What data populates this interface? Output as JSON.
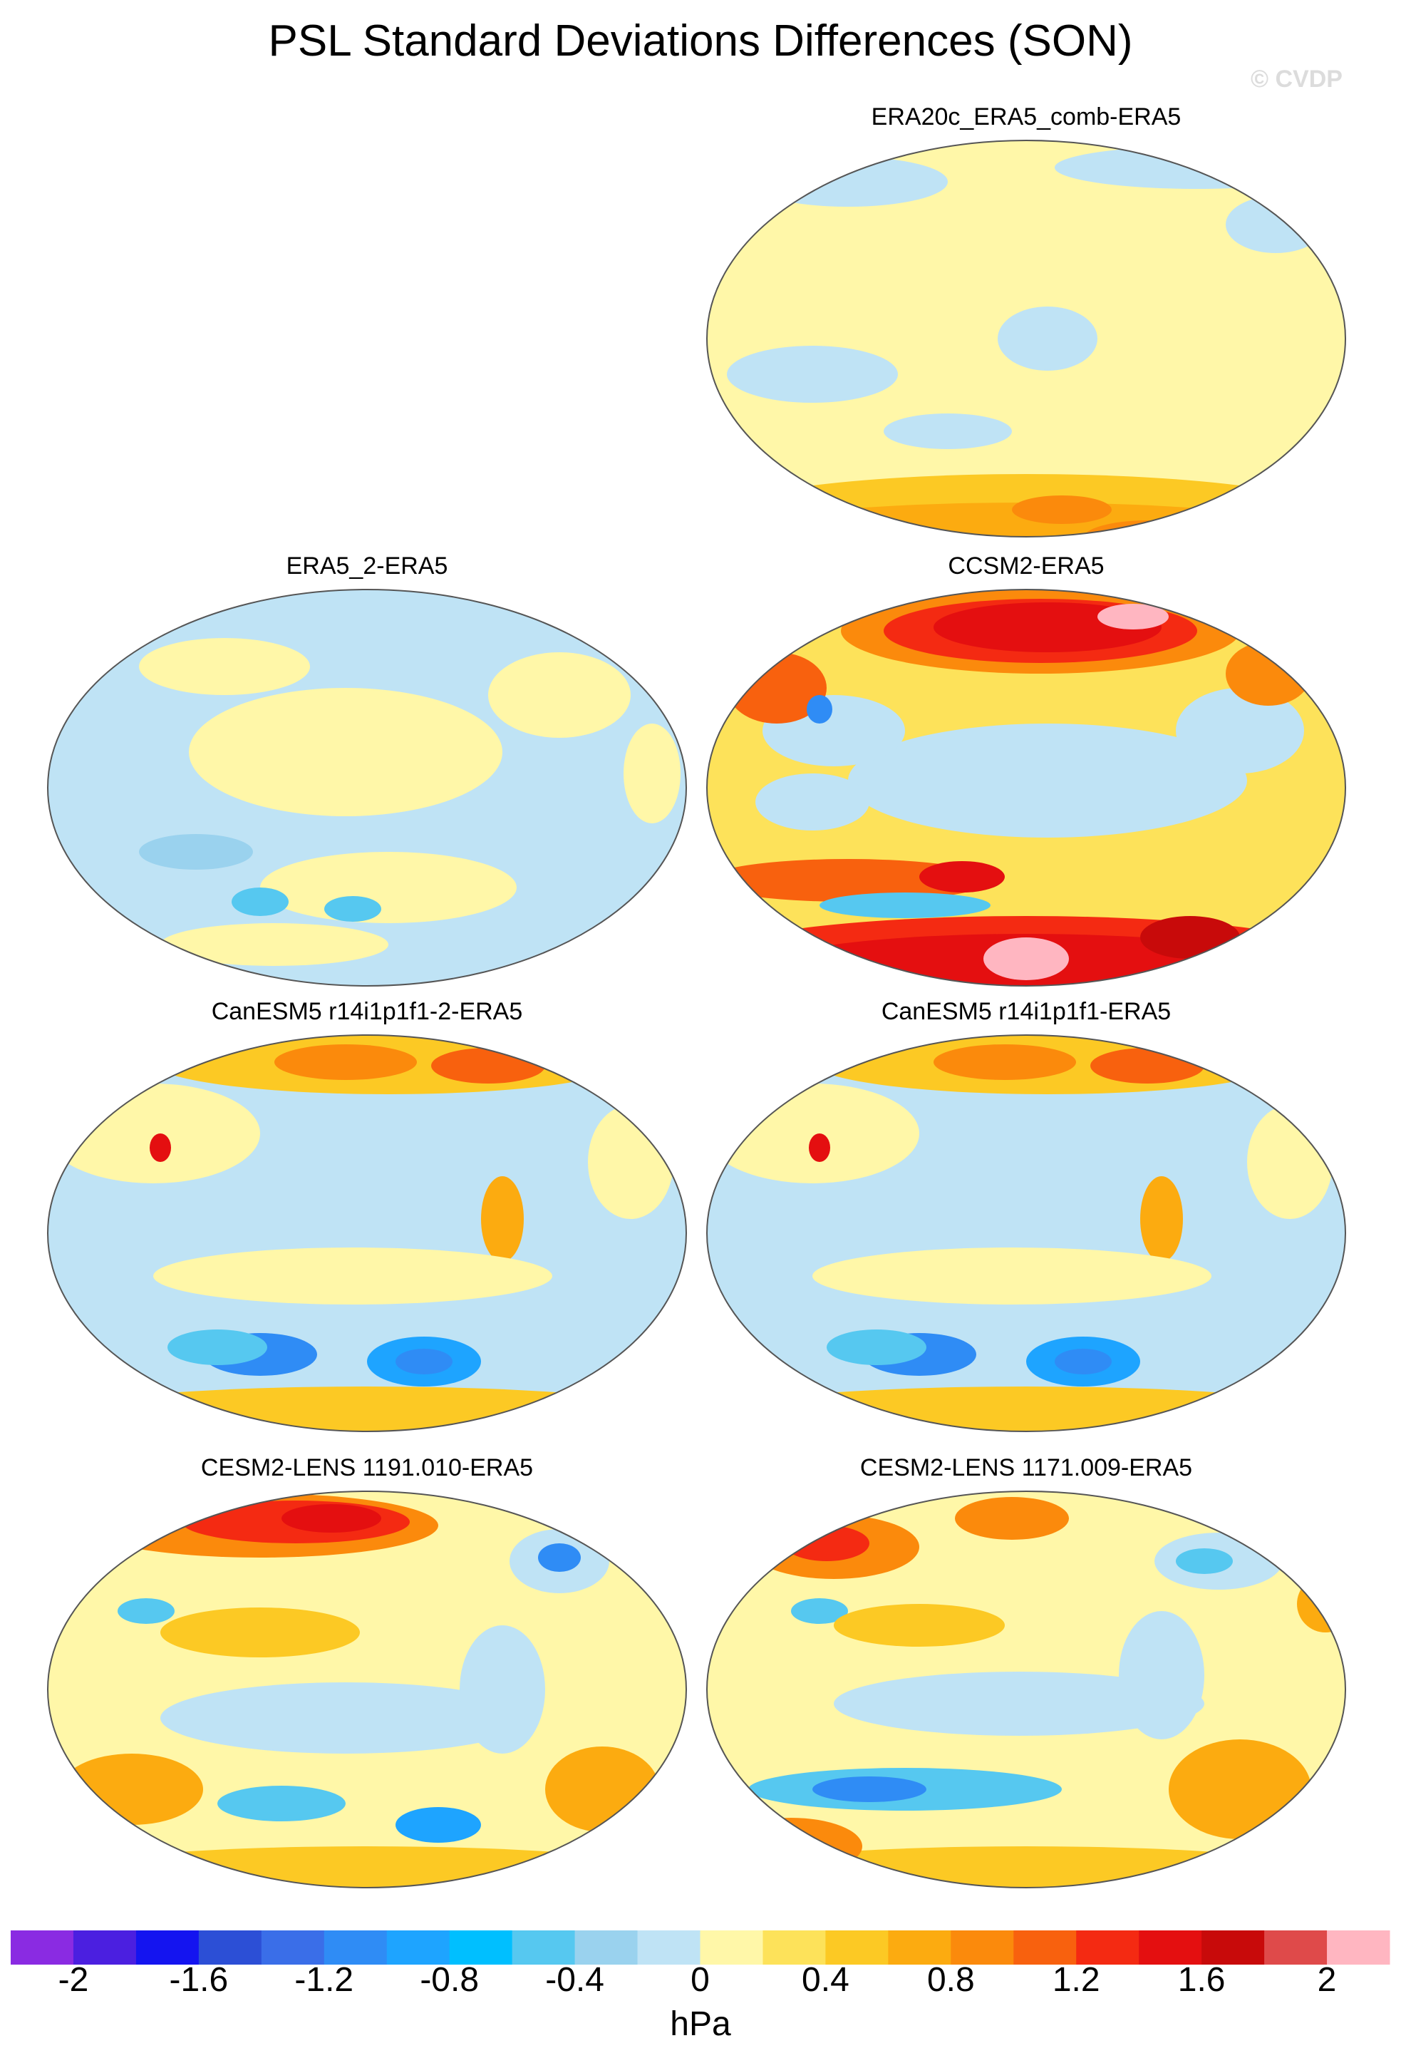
{
  "title": "PSL Standard Deviations Differences (SON)",
  "watermark": "© CVDP",
  "unit": "hPa",
  "colorbar": {
    "ticks": [
      "-2",
      "-1.6",
      "-1.2",
      "-0.8",
      "-0.4",
      "0",
      "0.4",
      "0.8",
      "1.2",
      "1.6",
      "2"
    ],
    "colors": [
      "#8a2be2",
      "#4b1fe0",
      "#1414f0",
      "#2c4fd6",
      "#3a6ee8",
      "#2f8cf5",
      "#1ea4ff",
      "#00bfff",
      "#56c8f0",
      "#9ad2ee",
      "#bfe3f5",
      "#fff7a8",
      "#fde25a",
      "#fcc924",
      "#fcab10",
      "#fb8a0c",
      "#f8610e",
      "#f42a12",
      "#e40f10",
      "#c80a0a",
      "#df4a4a",
      "#ffb6c1"
    ]
  },
  "panels": [
    {
      "id": "era20c",
      "title": "ERA20c_ERA5_comb-ERA5",
      "base": "#fff7a8"
    },
    {
      "id": "era5_2",
      "title": "ERA5_2-ERA5",
      "base": "#bfe3f5"
    },
    {
      "id": "ccsm2",
      "title": "CCSM2-ERA5",
      "base": "#fde25a"
    },
    {
      "id": "canesm_2",
      "title": "CanESM5 r14i1p1f1-2-ERA5",
      "base": "#bfe3f5"
    },
    {
      "id": "canesm",
      "title": "CanESM5 r14i1p1f1-ERA5",
      "base": "#bfe3f5"
    },
    {
      "id": "cesm_1191",
      "title": "CESM2-LENS 1191.010-ERA5",
      "base": "#fff7a8"
    },
    {
      "id": "cesm_1171",
      "title": "CESM2-LENS 1171.009-ERA5",
      "base": "#fff7a8"
    }
  ],
  "chart_data": {
    "type": "heatmap",
    "variable": "PSL",
    "season": "SON",
    "color_range": [
      -2,
      2
    ],
    "color_step": 0.2
  }
}
